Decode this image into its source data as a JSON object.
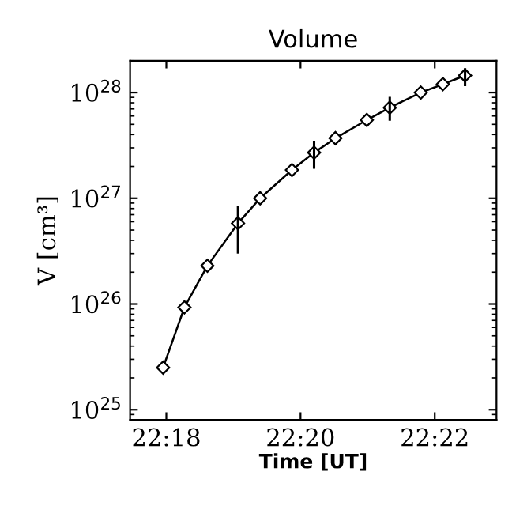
{
  "chart_data": {
    "type": "line",
    "title": "Volume",
    "xlabel": "Time [UT]",
    "ylabel": "V [cm³]",
    "x": [
      22.2992,
      22.3045,
      22.3102,
      22.3178,
      22.3233,
      22.3312,
      22.3367,
      22.342,
      22.3498,
      22.3555,
      22.3632,
      22.3687,
      22.3742
    ],
    "series": [
      {
        "color": "#000000",
        "values": [
          2.5e+25,
          9.3e+25,
          2.3e+26,
          5.8e+26,
          1e+27,
          1.85e+27,
          2.7e+27,
          3.7e+27,
          5.5e+27,
          7.2e+27,
          1e+28,
          1.2e+28,
          1.45e+28
        ],
        "errors": [
          null,
          null,
          null,
          [
            3e+26,
            8.5e+26
          ],
          null,
          null,
          [
            1.9e+27,
            3.5e+27
          ],
          null,
          null,
          [
            5.4e+27,
            9.1e+27
          ],
          null,
          null,
          [
            1.15e+28,
            1.7e+28
          ]
        ]
      }
    ],
    "log": "y",
    "marker": "diamond",
    "line_style": "solid",
    "grid": false,
    "xlim": [
      22.291,
      22.382
    ],
    "xticks": [
      {
        "value": 22.3,
        "label": "22:18"
      },
      {
        "value": 22.33333,
        "label": "22:20"
      },
      {
        "value": 22.36667,
        "label": "22:22"
      }
    ],
    "ylim": [
      8e+24,
      2e+28
    ],
    "yticks": [
      {
        "value": 1e+25,
        "label": "10$^{25}$"
      },
      {
        "value": 1e+26,
        "label": "10$^{26}$"
      },
      {
        "value": 1e+27,
        "label": "10$^{27}$"
      },
      {
        "value": 1e+28,
        "label": "10$^{28}$"
      }
    ]
  }
}
